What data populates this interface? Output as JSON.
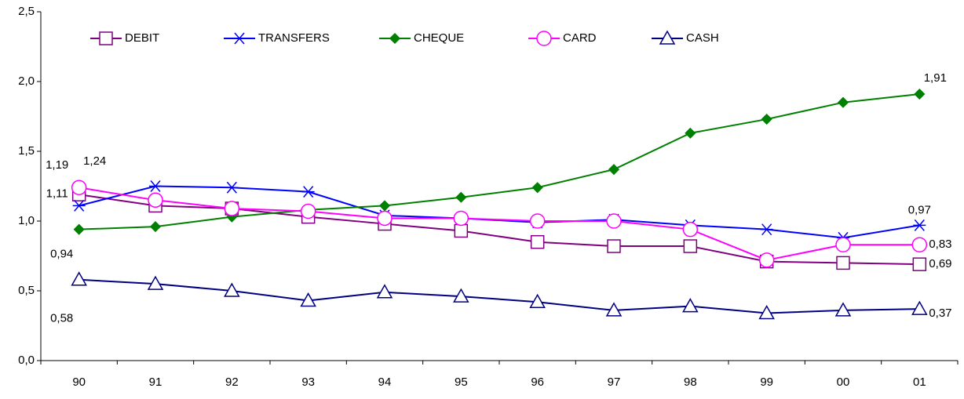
{
  "chart_data": {
    "type": "line",
    "categories": [
      "90",
      "91",
      "92",
      "93",
      "94",
      "95",
      "96",
      "97",
      "98",
      "99",
      "00",
      "01"
    ],
    "ylim": [
      0,
      2.5
    ],
    "yticks": [
      {
        "value": 0,
        "label": "0,0"
      },
      {
        "value": 0.5,
        "label": "0,5"
      },
      {
        "value": 1,
        "label": "1,0"
      },
      {
        "value": 1.5,
        "label": "1,5"
      },
      {
        "value": 2,
        "label": "2,0"
      },
      {
        "value": 2.5,
        "label": "2,5"
      }
    ],
    "legend": "top",
    "series": [
      {
        "name": "DEBIT",
        "color": "#800080",
        "marker": "square",
        "values": [
          1.19,
          1.11,
          1.09,
          1.03,
          0.98,
          0.93,
          0.85,
          0.82,
          0.82,
          0.71,
          0.7,
          0.69
        ],
        "value_labels": [
          "1,19",
          null,
          null,
          null,
          null,
          null,
          null,
          null,
          null,
          null,
          null,
          "0,69"
        ]
      },
      {
        "name": "TRANSFERS",
        "color": "#0000ff",
        "marker": "asterisk",
        "values": [
          1.11,
          1.25,
          1.24,
          1.21,
          1.04,
          1.02,
          0.99,
          1.01,
          0.97,
          0.94,
          0.88,
          0.97
        ],
        "value_labels": [
          "1,11",
          null,
          null,
          null,
          null,
          null,
          null,
          null,
          null,
          null,
          null,
          "0,97"
        ]
      },
      {
        "name": "CHEQUE",
        "color": "#008000",
        "marker": "diamond",
        "values": [
          0.94,
          0.96,
          1.03,
          1.08,
          1.11,
          1.17,
          1.24,
          1.37,
          1.63,
          1.73,
          1.85,
          1.91
        ],
        "value_labels": [
          "0,94",
          null,
          null,
          null,
          null,
          null,
          null,
          null,
          null,
          null,
          null,
          "1,91"
        ]
      },
      {
        "name": "CARD",
        "color": "#ff00ff",
        "marker": "circle",
        "values": [
          1.24,
          1.15,
          1.09,
          1.07,
          1.02,
          1.02,
          1.0,
          1.0,
          0.94,
          0.72,
          0.83,
          0.83
        ],
        "value_labels": [
          "1,24",
          null,
          null,
          null,
          null,
          null,
          null,
          null,
          null,
          null,
          null,
          "0,83"
        ]
      },
      {
        "name": "CASH",
        "color": "#000080",
        "marker": "triangle",
        "values": [
          0.58,
          0.55,
          0.5,
          0.43,
          0.49,
          0.46,
          0.42,
          0.36,
          0.39,
          0.34,
          0.36,
          0.37
        ],
        "value_labels": [
          "0,58",
          null,
          null,
          null,
          null,
          null,
          null,
          null,
          null,
          null,
          null,
          "0,37"
        ]
      }
    ]
  }
}
